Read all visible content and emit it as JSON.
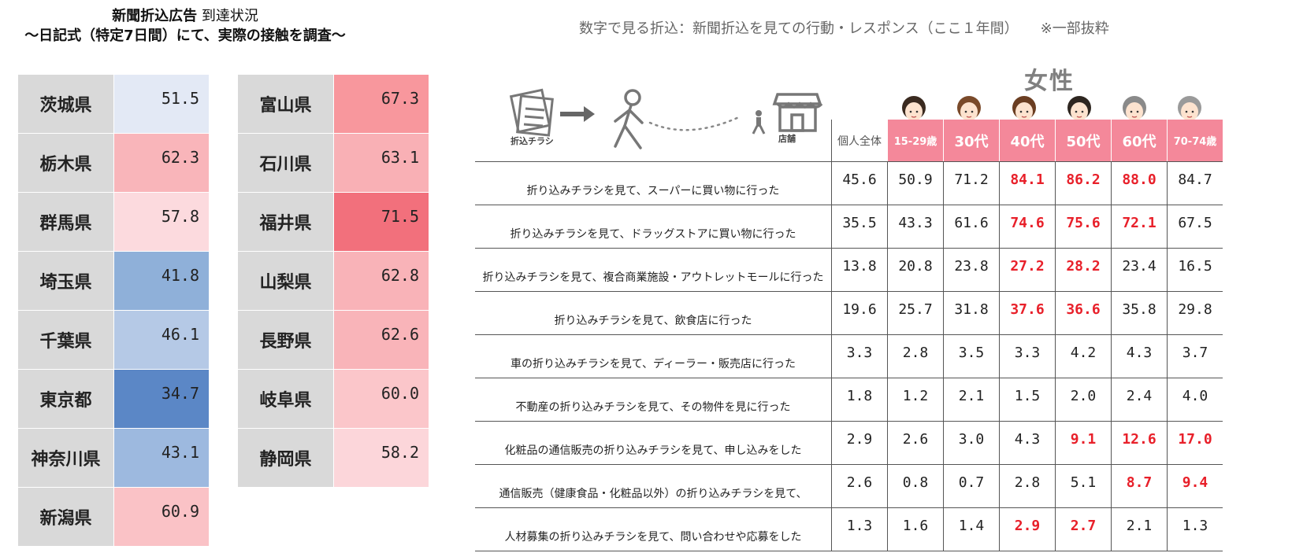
{
  "left_title": {
    "line1_bold": "新聞折込広告",
    "line1_rest": " 到達状況",
    "line2": "〜日記式（特定7日間）にて、実際の接触を調査〜"
  },
  "colors": {
    "blue_dark": "#5b87c6",
    "blue_mid": "#8fb0d9",
    "blue_light": "#b5c9e6",
    "blue_pale": "#e3e9f5",
    "red_strong": "#f2707c",
    "red_mid": "#f8a0a6",
    "red_light": "#fac2c6",
    "red_pale": "#fcdade",
    "age_header": "#f4889a",
    "highlight_text": "#e8202a"
  },
  "prefectures_left": [
    {
      "name": "茨城県",
      "value": "51.5",
      "color": "#e3e9f5"
    },
    {
      "name": "栃木県",
      "value": "62.3",
      "color": "#f9b5ba"
    },
    {
      "name": "群馬県",
      "value": "57.8",
      "color": "#fcdade"
    },
    {
      "name": "埼玉県",
      "value": "41.8",
      "color": "#8fb0d9"
    },
    {
      "name": "千葉県",
      "value": "46.1",
      "color": "#b5c9e6"
    },
    {
      "name": "東京都",
      "value": "34.7",
      "color": "#5b87c6"
    },
    {
      "name": "神奈川県",
      "value": "43.1",
      "color": "#9db9df"
    },
    {
      "name": "新潟県",
      "value": "60.9",
      "color": "#fac2c6"
    }
  ],
  "prefectures_right": [
    {
      "name": "富山県",
      "value": "67.3",
      "color": "#f8979d"
    },
    {
      "name": "石川県",
      "value": "63.1",
      "color": "#f9b0b5"
    },
    {
      "name": "福井県",
      "value": "71.5",
      "color": "#f2707c"
    },
    {
      "name": "山梨県",
      "value": "62.8",
      "color": "#f9b3b8"
    },
    {
      "name": "長野県",
      "value": "62.6",
      "color": "#f9b4b9"
    },
    {
      "name": "岐阜県",
      "value": "60.0",
      "color": "#fbc6ca"
    },
    {
      "name": "静岡県",
      "value": "58.2",
      "color": "#fcd6da"
    }
  ],
  "right_title": {
    "main": "数字で見る折込：新聞折込を見ての行動・レスポンス（ここ１年間）",
    "note": "※一部抜粋"
  },
  "illustration": {
    "flyer_label": "折込チラシ",
    "store_label": "店舗"
  },
  "gender_label": "女性",
  "table": {
    "overall_header": "個人全体",
    "age_headers": [
      "15-29歳",
      "30代",
      "40代",
      "50代",
      "60代",
      "70-74歳"
    ],
    "rows": [
      {
        "label": "折り込みチラシを見て、スーパーに買い物に行った",
        "values": [
          "45.6",
          "50.9",
          "71.2",
          "84.1",
          "86.2",
          "88.0",
          "84.7"
        ],
        "highlight": [
          false,
          false,
          false,
          true,
          true,
          true,
          false
        ]
      },
      {
        "label": "折り込みチラシを見て、ドラッグストアに買い物に行った",
        "values": [
          "35.5",
          "43.3",
          "61.6",
          "74.6",
          "75.6",
          "72.1",
          "67.5"
        ],
        "highlight": [
          false,
          false,
          false,
          true,
          true,
          true,
          false
        ]
      },
      {
        "label": "折り込みチラシを見て、複合商業施設・アウトレットモールに行った",
        "values": [
          "13.8",
          "20.8",
          "23.8",
          "27.2",
          "28.2",
          "23.4",
          "16.5"
        ],
        "highlight": [
          false,
          false,
          false,
          true,
          true,
          false,
          false
        ]
      },
      {
        "label": "折り込みチラシを見て、飲食店に行った",
        "values": [
          "19.6",
          "25.7",
          "31.8",
          "37.6",
          "36.6",
          "35.8",
          "29.8"
        ],
        "highlight": [
          false,
          false,
          false,
          true,
          true,
          false,
          false
        ]
      },
      {
        "label": "車の折り込みチラシを見て、ディーラー・販売店に行った",
        "values": [
          "3.3",
          "2.8",
          "3.5",
          "3.3",
          "4.2",
          "4.3",
          "3.7"
        ],
        "highlight": [
          false,
          false,
          false,
          false,
          false,
          false,
          false
        ]
      },
      {
        "label": "不動産の折り込みチラシを見て、その物件を見に行った",
        "values": [
          "1.8",
          "1.2",
          "2.1",
          "1.5",
          "2.0",
          "2.4",
          "4.0"
        ],
        "highlight": [
          false,
          false,
          false,
          false,
          false,
          false,
          false
        ]
      },
      {
        "label": "化粧品の通信販売の折り込みチラシを見て、申し込みをした",
        "values": [
          "2.9",
          "2.6",
          "3.0",
          "4.3",
          "9.1",
          "12.6",
          "17.0"
        ],
        "highlight": [
          false,
          false,
          false,
          false,
          true,
          true,
          true
        ]
      },
      {
        "label": "通信販売（健康食品・化粧品以外）の折り込みチラシを見て、",
        "values": [
          "2.6",
          "0.8",
          "0.7",
          "2.8",
          "5.1",
          "8.7",
          "9.4"
        ],
        "highlight": [
          false,
          false,
          false,
          false,
          false,
          true,
          true
        ]
      },
      {
        "label": "人材募集の折り込みチラシを見て、問い合わせや応募をした",
        "values": [
          "1.3",
          "1.6",
          "1.4",
          "2.9",
          "2.7",
          "2.1",
          "1.3"
        ],
        "highlight": [
          false,
          false,
          false,
          true,
          true,
          false,
          false
        ]
      }
    ]
  }
}
